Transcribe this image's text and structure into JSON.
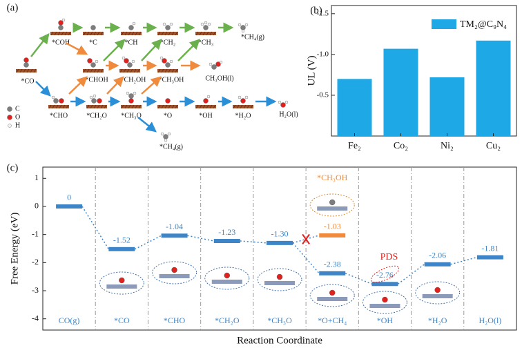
{
  "panel_a": {
    "label": "(a)",
    "species": [
      "*COH",
      "*C",
      "*CH",
      "*CH₂",
      "*CH₃",
      "*CH₄(g)",
      "*CO",
      "*CHOH",
      "*CH₂OH",
      "*CH₃OH",
      "CH₃OH(l)",
      "*CHO",
      "*CH₂O",
      "*CH₃O",
      "*O",
      "*OH",
      "*H₂O",
      "H₂O(l)",
      "*CH₄(g)"
    ],
    "legend": [
      "C",
      "O",
      "H"
    ]
  },
  "chart_data": [
    {
      "type": "bar",
      "panel": "(b)",
      "y_label": "UL (V)",
      "categories": [
        "Fe₂",
        "Co₂",
        "Ni₂",
        "Cu₂"
      ],
      "series": [
        {
          "name": "TM₂@C₉N₄",
          "color": "#1ea8e6",
          "values": [
            -0.7,
            -1.07,
            -0.72,
            -1.17
          ]
        }
      ],
      "ylim": [
        0,
        -1.6
      ],
      "yticks": [
        -1.5,
        {
          "value": -1,
          "label": "-1.0"
        },
        -0.5
      ],
      "legend": "upper right"
    },
    {
      "type": "energy-profile",
      "panel": "(c)",
      "x_label": "Reaction Coordinate",
      "y_label": "Free Energy (eV)",
      "categories": [
        "CO(g)",
        "*CO",
        "*CHO",
        "*CH₂O",
        "*CH₃O",
        "*O+CH₄",
        "*OH",
        "*H₂O",
        "H₂O(l)"
      ],
      "series": [
        {
          "color": "#3d85c6",
          "values": [
            0,
            -1.52,
            -1.04,
            -1.23,
            -1.3,
            -2.38,
            -2.76,
            -2.06,
            -1.81
          ],
          "value_labels": [
            "0",
            "-1.52",
            "-1.04",
            "-1.23",
            "-1.30",
            "-2.38",
            "-2.76",
            "-2.06",
            "-1.81"
          ]
        },
        {
          "color": "#f08a3c",
          "values": [
            null,
            null,
            null,
            null,
            null,
            -1.03,
            null,
            null,
            null
          ],
          "value_labels": [
            null,
            null,
            null,
            null,
            null,
            "-1.03",
            null,
            null,
            null
          ]
        }
      ],
      "ylim": [
        -4.4,
        1.4
      ],
      "yticks": [
        1,
        0,
        -1,
        -2,
        -3,
        -4
      ],
      "annotations": [
        "*CH₃OH",
        "PDS"
      ]
    }
  ]
}
